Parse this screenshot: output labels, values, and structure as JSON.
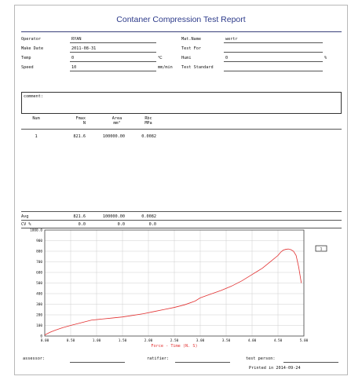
{
  "report": {
    "title": "Contaner Compression Test Report"
  },
  "fields": {
    "operator": {
      "label": "Operator",
      "value": "RYAN"
    },
    "mat_name": {
      "label": "Mat.Name",
      "value": "wertr"
    },
    "make_date": {
      "label": "Make Date",
      "value": "2011-08-31"
    },
    "test_for": {
      "label": "Test For",
      "value": ""
    },
    "temp": {
      "label": "Temp",
      "value": "0",
      "unit": "℃"
    },
    "humi": {
      "label": "Humi",
      "value": "0",
      "unit": "%"
    },
    "speed": {
      "label": "Speed",
      "value": "10",
      "unit": "mm/min"
    },
    "test_standard": {
      "label": "Test Standard",
      "value": ""
    },
    "comment": {
      "label": "comment:",
      "value": ""
    }
  },
  "table": {
    "headers": [
      {
        "name": "Num",
        "unit": ""
      },
      {
        "name": "Fmax",
        "unit": "N"
      },
      {
        "name": "Area",
        "unit": "mm²"
      },
      {
        "name": "Rbc",
        "unit": "MPa"
      }
    ],
    "rows": [
      {
        "num": "1",
        "fmax": "821.6",
        "area": "100000.00",
        "rbc": "0.0082"
      }
    ],
    "avg": {
      "label": "Avg",
      "fmax": "821.6",
      "area": "100000.00",
      "rbc": "0.0082"
    },
    "cv": {
      "label": "CV %",
      "fmax": "0.0",
      "area": "0.0",
      "rbc": "0.0"
    }
  },
  "chart_data": {
    "type": "line",
    "xlabel": "Force - Time  (N. S)",
    "ylabel": "",
    "xlim": [
      0,
      5
    ],
    "ylim": [
      0,
      1000
    ],
    "xticks": [
      "0.00",
      "0.50",
      "1.00",
      "1.50",
      "2.00",
      "2.50",
      "3.00",
      "3.50",
      "4.00",
      "4.50",
      "5.00"
    ],
    "yticks": [
      "0",
      "100",
      "200",
      "300",
      "400",
      "500",
      "600",
      "700",
      "800",
      "900",
      "1000.0"
    ],
    "grid": true,
    "line_color": "#e23030",
    "series": [
      {
        "name": "",
        "x": [
          0.0,
          0.1,
          0.2,
          0.35,
          0.5,
          0.7,
          0.9,
          1.1,
          1.3,
          1.5,
          1.7,
          1.9,
          2.1,
          2.3,
          2.5,
          2.7,
          2.9,
          3.0,
          3.2,
          3.4,
          3.6,
          3.8,
          4.0,
          4.1,
          4.2,
          4.3,
          4.4,
          4.5,
          4.55,
          4.6,
          4.65,
          4.7,
          4.75,
          4.8,
          4.85,
          4.9,
          4.95
        ],
        "y": [
          10,
          35,
          55,
          80,
          100,
          125,
          150,
          160,
          170,
          180,
          195,
          210,
          230,
          250,
          270,
          295,
          330,
          360,
          395,
          430,
          470,
          520,
          580,
          610,
          640,
          680,
          720,
          760,
          790,
          810,
          818,
          821,
          815,
          800,
          760,
          650,
          500
        ]
      }
    ]
  },
  "chart_legend_box": {
    "label": "1"
  },
  "signatures": {
    "assessor": "assessor:",
    "ratifier": "ratifier:",
    "test_person": "test person:"
  },
  "printed": "Printed in 2014-09-24"
}
